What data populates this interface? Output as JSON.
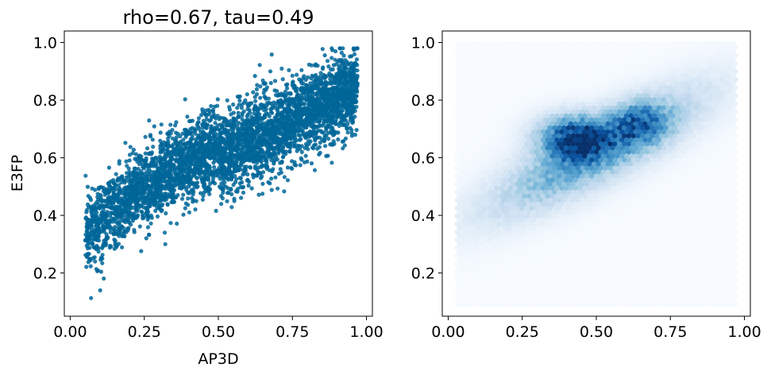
{
  "chart_data": [
    {
      "type": "scatter",
      "title": "rho=0.67, tau=0.49",
      "xlabel": "AP3D",
      "ylabel": "E3FP",
      "xlim": [
        -0.02,
        1.02
      ],
      "ylim": [
        0.05,
        1.04
      ],
      "xticks": [
        "0.00",
        "0.25",
        "0.50",
        "0.75",
        "1.00"
      ],
      "xtick_values": [
        0.0,
        0.25,
        0.5,
        0.75,
        1.0
      ],
      "yticks": [
        "0.2",
        "0.4",
        "0.6",
        "0.8",
        "1.0"
      ],
      "ytick_values": [
        0.2,
        0.4,
        0.6,
        0.8,
        1.0
      ],
      "grid": false,
      "point_color": "#006699",
      "description_points": {
        "trend": "dense positive correlation band",
        "x_range": [
          0.05,
          0.97
        ],
        "y_range": [
          0.1,
          0.98
        ],
        "centroid": [
          0.5,
          0.63
        ]
      }
    },
    {
      "type": "heatmap",
      "subtype": "hexbin",
      "title": "",
      "xlabel": "",
      "ylabel": "",
      "xlim": [
        -0.02,
        1.02
      ],
      "ylim": [
        0.05,
        1.04
      ],
      "xticks": [
        "0.00",
        "0.25",
        "0.50",
        "0.75",
        "1.00"
      ],
      "xtick_values": [
        0.0,
        0.25,
        0.5,
        0.75,
        1.0
      ],
      "yticks": [
        "0.2",
        "0.4",
        "0.6",
        "0.8",
        "1.0"
      ],
      "ytick_values": [
        0.2,
        0.4,
        0.6,
        0.8,
        1.0
      ],
      "grid": false,
      "colormap": "Blues",
      "extent": {
        "x": [
          0.03,
          0.97
        ],
        "y": [
          0.09,
          1.01
        ]
      },
      "density_peak": [
        0.43,
        0.67
      ]
    }
  ]
}
